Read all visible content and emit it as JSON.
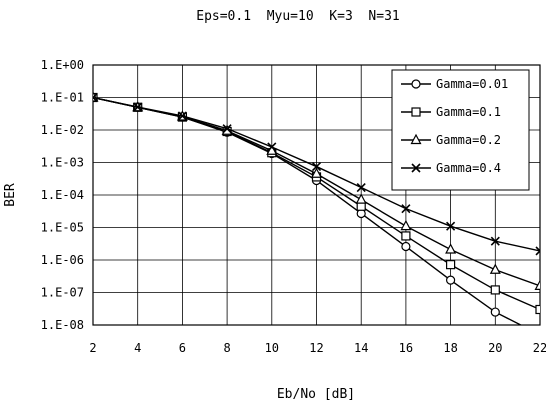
{
  "chart_data": {
    "type": "line",
    "title": "Eps=0.1  Myu=10  K=3  N=31",
    "xlabel": "Eb/No [dB]",
    "ylabel": "BER",
    "x": [
      2,
      4,
      6,
      8,
      10,
      12,
      14,
      16,
      18,
      20,
      22
    ],
    "xlim": [
      2,
      22
    ],
    "ylim": [
      1e-08,
      1
    ],
    "yscale": "log",
    "x_ticks": [
      "2",
      "4",
      "6",
      "8",
      "10",
      "12",
      "14",
      "16",
      "18",
      "20",
      "22"
    ],
    "y_ticks": [
      "1.E+00",
      "1.E-01",
      "1.E-02",
      "1.E-03",
      "1.E-04",
      "1.E-05",
      "1.E-06",
      "1.E-07",
      "1.E-08"
    ],
    "grid": true,
    "legend_position": "top-right",
    "series": [
      {
        "name": "Gamma=0.01",
        "marker": "circle",
        "values": [
          0.1,
          0.05,
          0.025,
          0.0085,
          0.0019,
          0.00028,
          2.7e-05,
          2.6e-06,
          2.4e-07,
          2.5e-08,
          5e-09
        ]
      },
      {
        "name": "Gamma=0.1",
        "marker": "square",
        "values": [
          0.1,
          0.05,
          0.025,
          0.009,
          0.002,
          0.00036,
          4.5e-05,
          5.5e-06,
          7.2e-07,
          1.2e-07,
          3e-08
        ]
      },
      {
        "name": "Gamma=0.2",
        "marker": "triangle",
        "values": [
          0.1,
          0.05,
          0.026,
          0.0095,
          0.0023,
          0.00045,
          7.2e-05,
          1.1e-05,
          2.1e-06,
          5e-07,
          1.6e-07
        ]
      },
      {
        "name": "Gamma=0.4",
        "marker": "cross",
        "values": [
          0.1,
          0.051,
          0.027,
          0.011,
          0.003,
          0.00075,
          0.00017,
          3.8e-05,
          1.1e-05,
          3.8e-06,
          1.9e-06
        ]
      }
    ]
  }
}
